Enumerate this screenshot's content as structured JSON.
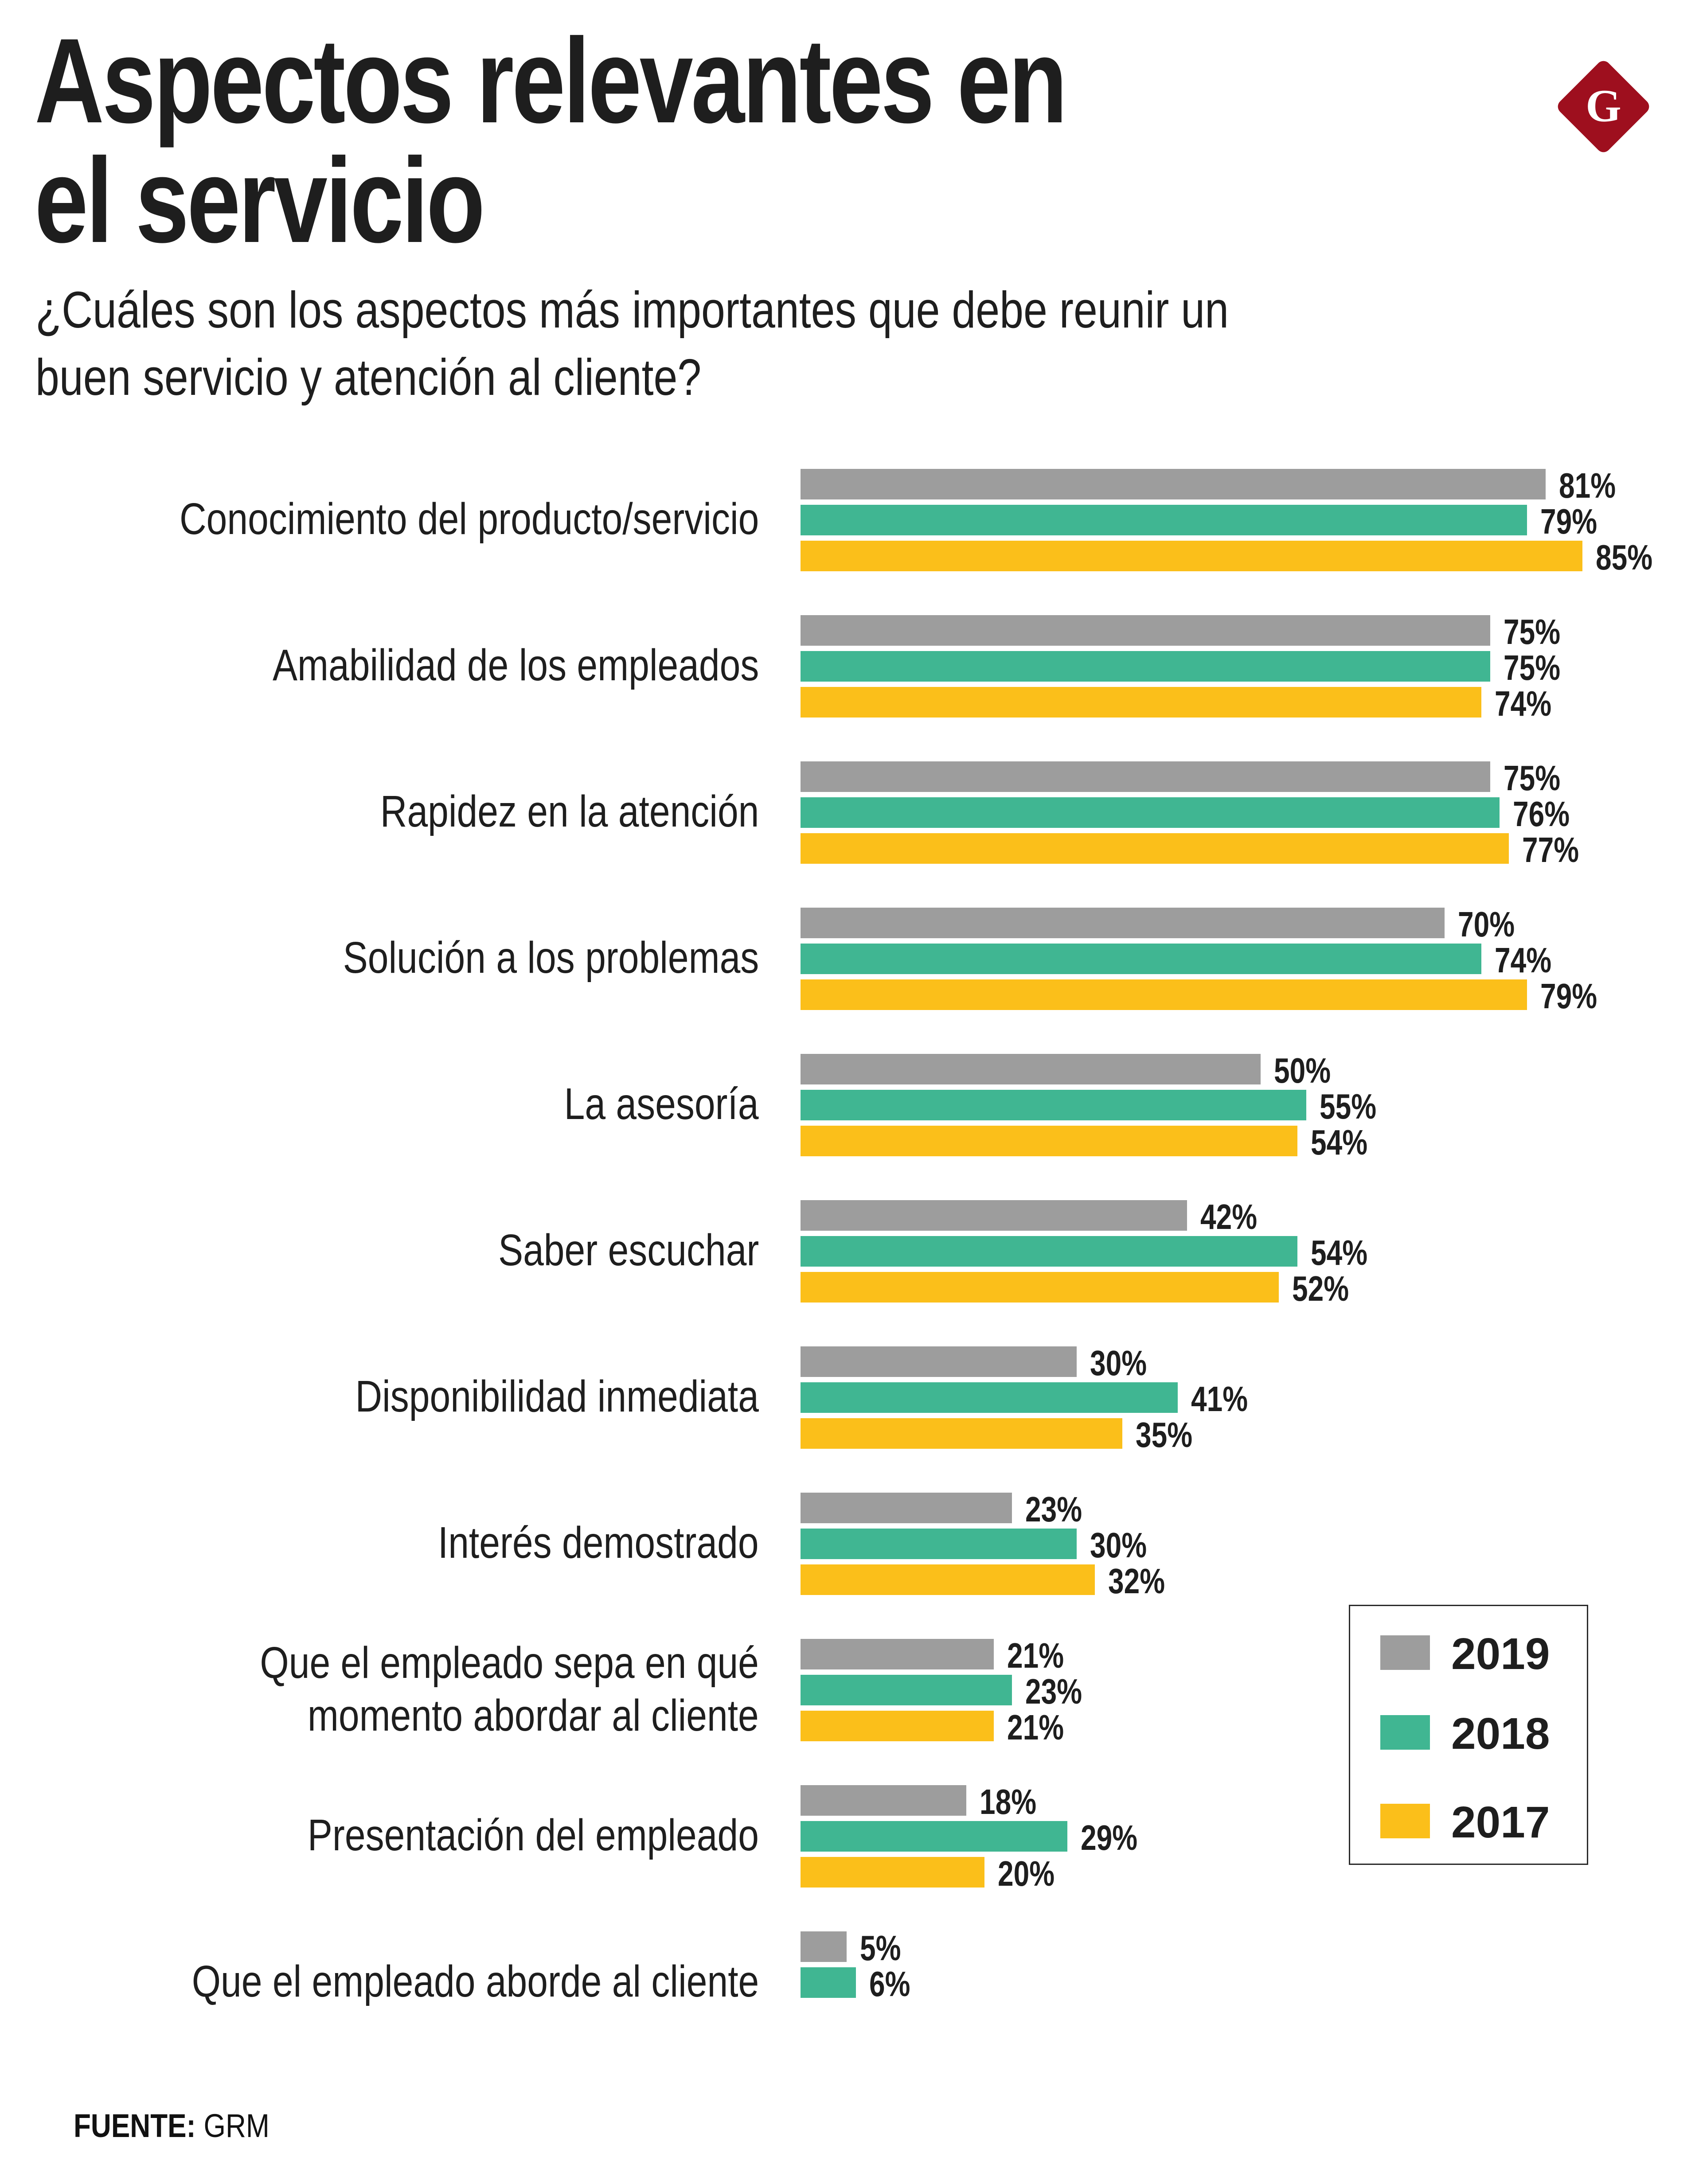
{
  "header": {
    "title_lines": [
      "Aspectos relevantes en",
      "el servicio"
    ],
    "subtitle_lines": [
      "¿Cuáles son los aspectos más importantes que debe reunir un",
      "buen servicio y atención al cliente?"
    ],
    "logo": {
      "icon": "g-diamond-logo-icon",
      "letter": "G",
      "color": "#9E0F1E"
    }
  },
  "legend": {
    "items": [
      {
        "label": "2019",
        "color": "#9D9D9D"
      },
      {
        "label": "2018",
        "color": "#40B692"
      },
      {
        "label": "2017",
        "color": "#FBBF1A"
      }
    ]
  },
  "footer": {
    "source_label": "FUENTE:",
    "source_value": "GRM"
  },
  "chart_data": {
    "type": "bar",
    "orientation": "horizontal",
    "title": "Aspectos relevantes en el servicio",
    "subtitle": "¿Cuáles son los aspectos más importantes que debe reunir un buen servicio y atención al cliente?",
    "xlabel": "",
    "ylabel": "",
    "unit": "%",
    "xlim": [
      0,
      100
    ],
    "grid": false,
    "legend_position": "bottom-right",
    "categories": [
      [
        "Conocimiento del producto/servicio"
      ],
      [
        "Amabilidad de los empleados"
      ],
      [
        "Rapidez en la atención"
      ],
      [
        "Solución a los problemas"
      ],
      [
        "La asesoría"
      ],
      [
        "Saber escuchar"
      ],
      [
        "Disponibilidad inmediata"
      ],
      [
        "Interés demostrado"
      ],
      [
        "Que el empleado sepa en qué",
        "momento abordar al cliente"
      ],
      [
        "Presentación del empleado"
      ],
      [
        "Que el empleado aborde al cliente"
      ]
    ],
    "series": [
      {
        "name": "2019",
        "color": "#9D9D9D",
        "values": [
          81,
          75,
          75,
          70,
          50,
          42,
          30,
          23,
          21,
          18,
          5
        ]
      },
      {
        "name": "2018",
        "color": "#40B692",
        "values": [
          79,
          75,
          76,
          74,
          55,
          54,
          41,
          30,
          23,
          29,
          6
        ]
      },
      {
        "name": "2017",
        "color": "#FBBF1A",
        "values": [
          85,
          74,
          77,
          79,
          54,
          52,
          35,
          32,
          21,
          20,
          null
        ]
      }
    ],
    "data_labels": [
      [
        "81%",
        "79%",
        "85%"
      ],
      [
        "75%",
        "75%",
        "74%"
      ],
      [
        "75%",
        "76%",
        "77%"
      ],
      [
        "70%",
        "74%",
        "79%"
      ],
      [
        "50%",
        "55%",
        "54%"
      ],
      [
        "42%",
        "54%",
        "52%"
      ],
      [
        "30%",
        "41%",
        "35%"
      ],
      [
        "23%",
        "30%",
        "32%"
      ],
      [
        "21%",
        "23%",
        "21%"
      ],
      [
        "18%",
        "29%",
        "20%"
      ],
      [
        "5%",
        "6%",
        null
      ]
    ]
  }
}
